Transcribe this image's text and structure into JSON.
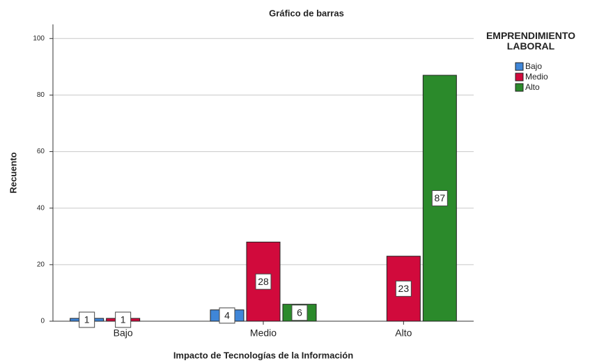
{
  "chart_data": {
    "type": "bar",
    "title": "Gráfico de barras",
    "x_label": "Impacto de Tecnologías de la Información",
    "y_label": "Recuento",
    "legend_title": "EMPRENDIMIENTO LABORAL",
    "legend_position": "right",
    "categories": [
      "Bajo",
      "Medio",
      "Alto"
    ],
    "series": [
      {
        "name": "Bajo",
        "color": "#3f86d8",
        "values": [
          1,
          4,
          null
        ]
      },
      {
        "name": "Medio",
        "color": "#d10a3c",
        "values": [
          1,
          28,
          23
        ]
      },
      {
        "name": "Alto",
        "color": "#2b8a2b",
        "values": [
          null,
          6,
          87
        ]
      }
    ],
    "ylim": [
      0,
      105
    ],
    "yticks": [
      0,
      20,
      40,
      60,
      80,
      100
    ],
    "grid": true
  }
}
